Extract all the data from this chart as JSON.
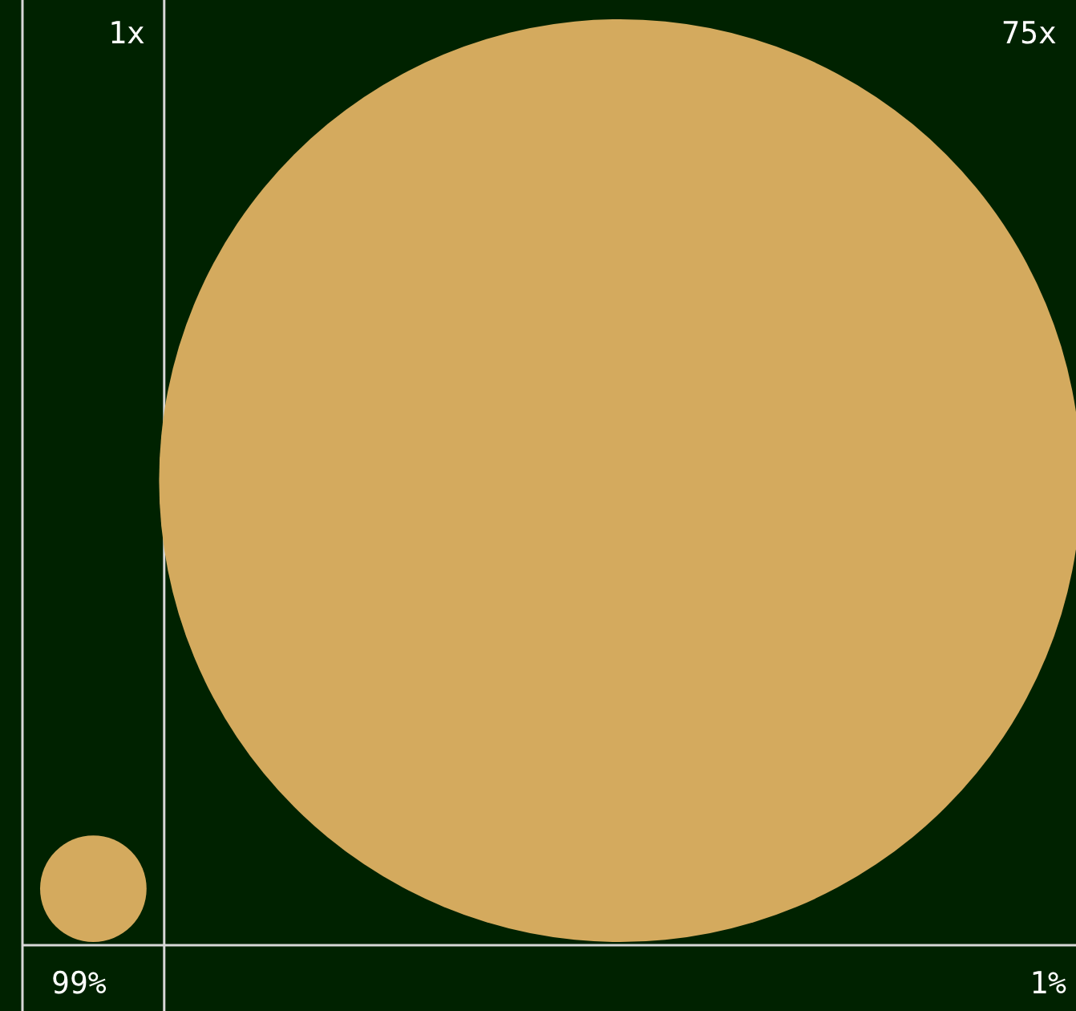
{
  "chart_data": {
    "type": "other",
    "categories": [
      "99%",
      "1%"
    ],
    "values": [
      1,
      75
    ],
    "value_labels": [
      "1x",
      "75x"
    ],
    "color": "#d4aa5e"
  }
}
